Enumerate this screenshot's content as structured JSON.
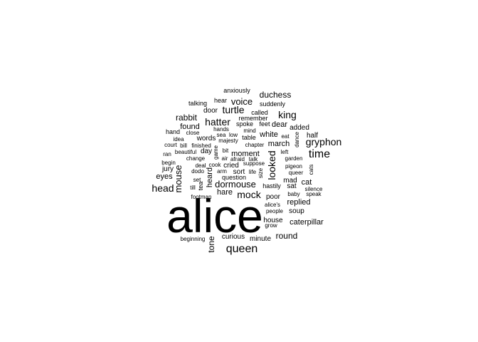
{
  "words": [
    {
      "text": "alice",
      "weight": 1000
    },
    {
      "text": "queen",
      "weight": 120
    },
    {
      "text": "time",
      "weight": 100
    },
    {
      "text": "head",
      "weight": 95
    },
    {
      "text": "gryphon",
      "weight": 95
    },
    {
      "text": "hatter",
      "weight": 95
    },
    {
      "text": "king",
      "weight": 95
    },
    {
      "text": "turtle",
      "weight": 95
    },
    {
      "text": "mock",
      "weight": 95
    },
    {
      "text": "looked",
      "weight": 90
    },
    {
      "text": "mouse",
      "weight": 85
    },
    {
      "text": "voice",
      "weight": 80
    },
    {
      "text": "dormouse",
      "weight": 80
    },
    {
      "text": "round",
      "weight": 80
    },
    {
      "text": "rabbit",
      "weight": 78
    },
    {
      "text": "duchess",
      "weight": 75
    },
    {
      "text": "tone",
      "weight": 70
    },
    {
      "text": "found",
      "weight": 65
    },
    {
      "text": "hare",
      "weight": 65
    },
    {
      "text": "march",
      "weight": 62
    },
    {
      "text": "cat",
      "weight": 60
    },
    {
      "text": "caterpillar",
      "weight": 60
    },
    {
      "text": "replied",
      "weight": 60
    },
    {
      "text": "eyes",
      "weight": 60
    },
    {
      "text": "white",
      "weight": 58
    },
    {
      "text": "dear",
      "weight": 58
    },
    {
      "text": "moment",
      "weight": 58
    },
    {
      "text": "head_v",
      "weight": 55
    },
    {
      "text": "poor",
      "weight": 55
    },
    {
      "text": "door",
      "weight": 52
    },
    {
      "text": "half",
      "weight": 52
    },
    {
      "text": "added",
      "weight": 52
    },
    {
      "text": "minute",
      "weight": 50
    },
    {
      "text": "curious",
      "weight": 48
    },
    {
      "text": "house",
      "weight": 48
    },
    {
      "text": "words",
      "weight": 48
    },
    {
      "text": "day",
      "weight": 48
    },
    {
      "text": "jury",
      "weight": 46
    },
    {
      "text": "sort",
      "weight": 46
    },
    {
      "text": "cried",
      "weight": 46
    },
    {
      "text": "sat",
      "weight": 45
    },
    {
      "text": "soup",
      "weight": 44
    },
    {
      "text": "mad",
      "weight": 44
    },
    {
      "text": "hand",
      "weight": 44
    },
    {
      "text": "hastily",
      "weight": 42
    },
    {
      "text": "spoke",
      "weight": 42
    },
    {
      "text": "table",
      "weight": 42
    },
    {
      "text": "question",
      "weight": 42
    },
    {
      "text": "talking",
      "weight": 40
    },
    {
      "text": "anxiously",
      "weight": 40
    },
    {
      "text": "hear",
      "weight": 40
    },
    {
      "text": "suddenly",
      "weight": 40
    },
    {
      "text": "called",
      "weight": 40
    },
    {
      "text": "remember",
      "weight": 40
    },
    {
      "text": "feet",
      "weight": 40
    },
    {
      "text": "mind",
      "weight": 38
    },
    {
      "text": "hands",
      "weight": 38
    },
    {
      "text": "eat",
      "weight": 38
    },
    {
      "text": "close",
      "weight": 36
    },
    {
      "text": "sea",
      "weight": 36
    },
    {
      "text": "low",
      "weight": 36
    },
    {
      "text": "idea",
      "weight": 36
    },
    {
      "text": "majesty",
      "weight": 36
    },
    {
      "text": "court",
      "weight": 36
    },
    {
      "text": "bill",
      "weight": 34
    },
    {
      "text": "finished",
      "weight": 34
    },
    {
      "text": "chapter",
      "weight": 34
    },
    {
      "text": "ran",
      "weight": 34
    },
    {
      "text": "beautiful",
      "weight": 34
    },
    {
      "text": "bit",
      "weight": 34
    },
    {
      "text": "left",
      "weight": 34
    },
    {
      "text": "change",
      "weight": 34
    },
    {
      "text": "air",
      "weight": 34
    },
    {
      "text": "afraid",
      "weight": 34
    },
    {
      "text": "talk",
      "weight": 34
    },
    {
      "text": "garden",
      "weight": 34
    },
    {
      "text": "begin",
      "weight": 34
    },
    {
      "text": "deal",
      "weight": 34
    },
    {
      "text": "cook",
      "weight": 34
    },
    {
      "text": "suppose",
      "weight": 34
    },
    {
      "text": "pigeon",
      "weight": 34
    },
    {
      "text": "dodo",
      "weight": 34
    },
    {
      "text": "arm",
      "weight": 34
    },
    {
      "text": "life",
      "weight": 34
    },
    {
      "text": "queer",
      "weight": 34
    },
    {
      "text": "set",
      "weight": 34
    },
    {
      "text": "till",
      "weight": 34
    },
    {
      "text": "silence",
      "weight": 34
    },
    {
      "text": "baby",
      "weight": 34
    },
    {
      "text": "speak",
      "weight": 34
    },
    {
      "text": "footman",
      "weight": 34
    },
    {
      "text": "alice's",
      "weight": 34
    },
    {
      "text": "people",
      "weight": 34
    },
    {
      "text": "grow",
      "weight": 34
    },
    {
      "text": "beginning",
      "weight": 34
    },
    {
      "text": "game",
      "weight": 30
    },
    {
      "text": "size",
      "weight": 30
    },
    {
      "text": "dance",
      "weight": 30
    },
    {
      "text": "cats",
      "weight": 30
    },
    {
      "text": "tea",
      "weight": 30
    },
    {
      "text": "heard",
      "weight": 40
    }
  ],
  "colors": {
    "background": "#ffffff",
    "text": "#000000"
  }
}
